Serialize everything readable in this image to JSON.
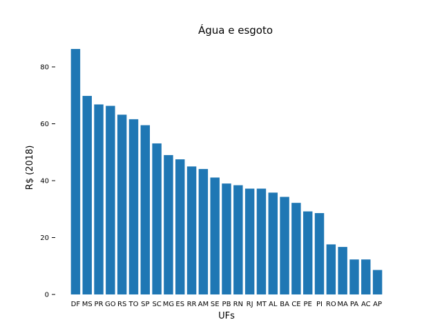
{
  "chart_data": {
    "type": "bar",
    "title": "Água e esgoto",
    "xlabel": "UFs",
    "ylabel": "R$ (2018)",
    "categories": [
      "DF",
      "MS",
      "PR",
      "GO",
      "RS",
      "TO",
      "SP",
      "SC",
      "MG",
      "ES",
      "RR",
      "AM",
      "SE",
      "PB",
      "RN",
      "RJ",
      "MT",
      "AL",
      "BA",
      "CE",
      "PE",
      "PI",
      "RO",
      "MA",
      "PA",
      "AC",
      "AP"
    ],
    "values": [
      86.3,
      69.8,
      66.8,
      66.3,
      63.2,
      61.6,
      59.5,
      53.1,
      49.0,
      47.5,
      45.0,
      44.1,
      41.1,
      39.0,
      38.4,
      37.2,
      37.2,
      35.8,
      34.3,
      32.2,
      29.2,
      28.6,
      17.6,
      16.7,
      12.3,
      12.3,
      8.6
    ],
    "ylim": [
      0,
      88
    ],
    "yticks": [
      0,
      20,
      40,
      60,
      80
    ],
    "grid": false,
    "legend": "none",
    "bar_color": "#1f77b4"
  }
}
